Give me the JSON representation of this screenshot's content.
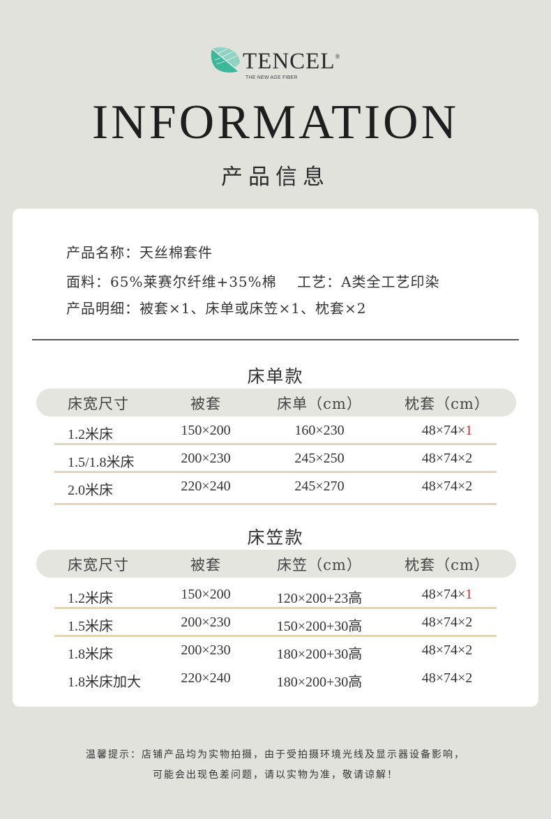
{
  "brand": {
    "name": "TENCEL",
    "registered": "®",
    "tagline": "THE NEW AGE FIBER",
    "leaf_colors": [
      "#3bb89a",
      "#8fd2c2"
    ]
  },
  "header": {
    "title": "INFORMATION",
    "subtitle": "产品信息"
  },
  "info": {
    "name": "产品名称：天丝棉套件",
    "fabric": "面料：65%莱赛尔纤维+35%棉    工艺：A类全工艺印染",
    "details": "产品明细：被套×1、床单或床笠×1、枕套×2"
  },
  "tables": [
    {
      "title": "床单款",
      "headers": [
        "床宽尺寸",
        "被套",
        "床单（cm）",
        "枕套（cm）"
      ],
      "rows": [
        {
          "cells": [
            "1.2米床",
            "150×200",
            "160×230",
            "48×74×"
          ],
          "last": "1",
          "highlight": true
        },
        {
          "cells": [
            "1.5/1.8米床",
            "200×230",
            "245×250",
            "48×74×"
          ],
          "last": "2"
        },
        {
          "cells": [
            "2.0米床",
            "220×240",
            "245×270",
            "48×74×"
          ],
          "last": "2"
        }
      ]
    },
    {
      "title": "床笠款",
      "headers": [
        "床宽尺寸",
        "被套",
        "床笠（cm）",
        "枕套（cm）"
      ],
      "rows": [
        {
          "cells": [
            "1.2米床",
            "150×200",
            "120×200+23高",
            "48×74×"
          ],
          "last": "1",
          "highlight": true
        },
        {
          "cells": [
            "1.5米床",
            "200×230",
            "150×200+30高",
            "48×74×"
          ],
          "last": "2"
        },
        {
          "cells": [
            "1.8米床",
            "200×230",
            "180×200+30高",
            "48×74×"
          ],
          "last": "2"
        },
        {
          "cells": [
            "1.8米床加大",
            "220×240",
            "180×200+30高",
            "48×74×"
          ],
          "last": "2"
        }
      ]
    }
  ],
  "notice": {
    "line1": "温馨提示：店铺产品均为实物拍摄，由于受拍摄环境光线及显示器设备影响，",
    "line2": "可能会出现色差问题，请以实物为准，敬请谅解！"
  },
  "colors": {
    "background": "#e1e2dc",
    "card": "#ffffff",
    "row_divider": "#e3d4b6",
    "header_pill": "#e5e5df",
    "highlight": "#c0282a"
  }
}
